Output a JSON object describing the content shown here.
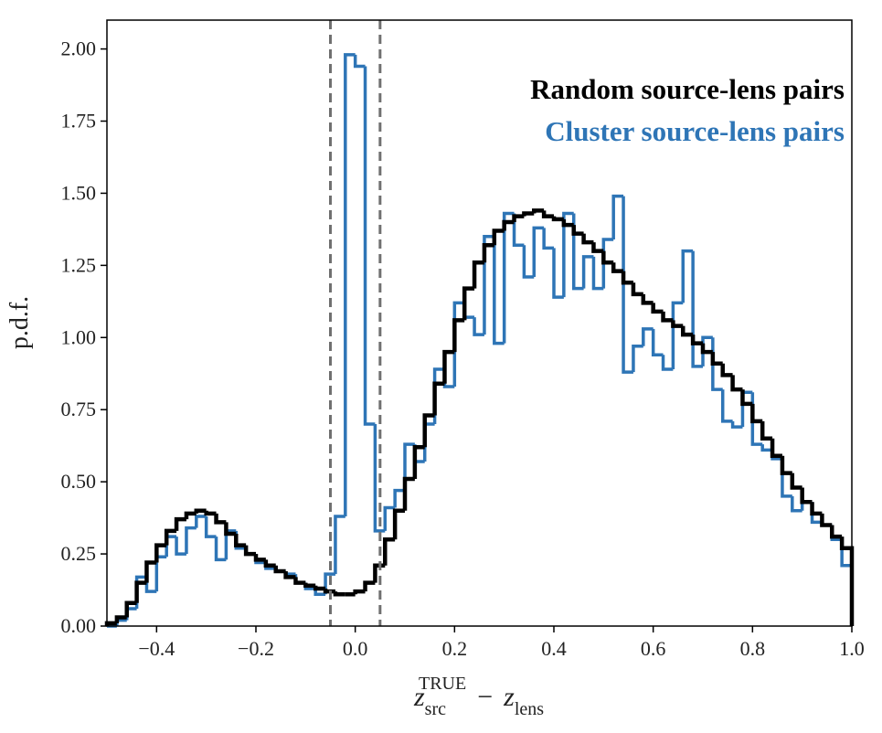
{
  "chart_data": {
    "type": "histogram",
    "ylabel": "p.d.f.",
    "xlabel": {
      "z1": "z",
      "sub1": "src",
      "sup1": "TRUE",
      "minus": "−",
      "z2": "z",
      "sub2": "lens"
    },
    "xlim": [
      -0.5,
      1.0
    ],
    "ylim": [
      0,
      2.1
    ],
    "xticks": [
      {
        "value": -0.4,
        "label": "−0.4"
      },
      {
        "value": -0.2,
        "label": "−0.2"
      },
      {
        "value": 0.0,
        "label": "0.0"
      },
      {
        "value": 0.2,
        "label": "0.2"
      },
      {
        "value": 0.4,
        "label": "0.4"
      },
      {
        "value": 0.6,
        "label": "0.6"
      },
      {
        "value": 0.8,
        "label": "0.8"
      },
      {
        "value": 1.0,
        "label": "1.0"
      }
    ],
    "yticks": [
      {
        "value": 0,
        "label": "0.00"
      },
      {
        "value": 0.25,
        "label": "0.25"
      },
      {
        "value": 0.5,
        "label": "0.50"
      },
      {
        "value": 0.75,
        "label": "0.75"
      },
      {
        "value": 1.0,
        "label": "1.00"
      },
      {
        "value": 1.25,
        "label": "1.25"
      },
      {
        "value": 1.5,
        "label": "1.50"
      },
      {
        "value": 1.75,
        "label": "1.75"
      },
      {
        "value": 2.0,
        "label": "2.00"
      }
    ],
    "vlines": [
      -0.05,
      0.05
    ],
    "vline_color": "#707070",
    "legend": "upper right",
    "bins": [
      -0.5,
      -0.48,
      -0.46,
      -0.44,
      -0.42,
      -0.4,
      -0.38,
      -0.36,
      -0.34,
      -0.32,
      -0.3,
      -0.28,
      -0.26,
      -0.24,
      -0.22,
      -0.2,
      -0.18,
      -0.16,
      -0.14,
      -0.12,
      -0.1,
      -0.08,
      -0.06,
      -0.04,
      -0.02,
      0.0,
      0.02,
      0.04,
      0.06,
      0.08,
      0.1,
      0.12,
      0.14,
      0.16,
      0.18,
      0.2,
      0.22,
      0.24,
      0.26,
      0.28,
      0.3,
      0.32,
      0.34,
      0.36,
      0.38,
      0.4,
      0.42,
      0.44,
      0.46,
      0.48,
      0.5,
      0.52,
      0.54,
      0.56,
      0.58,
      0.6,
      0.62,
      0.64,
      0.66,
      0.68,
      0.7,
      0.72,
      0.74,
      0.76,
      0.78,
      0.8,
      0.82,
      0.84,
      0.86,
      0.88,
      0.9,
      0.92,
      0.94,
      0.96,
      0.98,
      1.0
    ],
    "series": [
      {
        "name": "Random source-lens pairs",
        "color": "#000000",
        "values": [
          0.01,
          0.03,
          0.08,
          0.15,
          0.22,
          0.28,
          0.33,
          0.37,
          0.39,
          0.4,
          0.39,
          0.36,
          0.32,
          0.28,
          0.25,
          0.23,
          0.21,
          0.19,
          0.17,
          0.15,
          0.14,
          0.13,
          0.12,
          0.11,
          0.11,
          0.12,
          0.15,
          0.21,
          0.3,
          0.4,
          0.51,
          0.62,
          0.73,
          0.84,
          0.95,
          1.06,
          1.17,
          1.26,
          1.32,
          1.37,
          1.4,
          1.42,
          1.43,
          1.44,
          1.42,
          1.41,
          1.39,
          1.36,
          1.33,
          1.3,
          1.26,
          1.23,
          1.19,
          1.15,
          1.12,
          1.09,
          1.06,
          1.04,
          1.01,
          0.98,
          0.95,
          0.91,
          0.87,
          0.82,
          0.77,
          0.71,
          0.65,
          0.59,
          0.53,
          0.48,
          0.43,
          0.39,
          0.35,
          0.31,
          0.27
        ]
      },
      {
        "name": "Cluster source-lens pairs",
        "color": "#2e75b6",
        "values": [
          0,
          0.02,
          0.06,
          0.17,
          0.12,
          0.24,
          0.31,
          0.25,
          0.34,
          0.38,
          0.31,
          0.23,
          0.33,
          0.27,
          0.25,
          0.22,
          0.2,
          0.19,
          0.18,
          0.15,
          0.13,
          0.11,
          0.18,
          0.38,
          1.98,
          1.94,
          0.7,
          0.33,
          0.41,
          0.47,
          0.63,
          0.57,
          0.7,
          0.89,
          0.83,
          1.12,
          1.07,
          1.01,
          1.35,
          0.98,
          1.43,
          1.32,
          1.21,
          1.38,
          1.31,
          1.14,
          1.43,
          1.17,
          1.28,
          1.17,
          1.34,
          1.49,
          0.88,
          0.97,
          1.03,
          0.94,
          0.89,
          1.12,
          1.3,
          0.9,
          1.0,
          0.82,
          0.71,
          0.69,
          0.81,
          0.63,
          0.61,
          0.58,
          0.45,
          0.4,
          0.43,
          0.36,
          0.35,
          0.3,
          0.21
        ]
      }
    ]
  }
}
